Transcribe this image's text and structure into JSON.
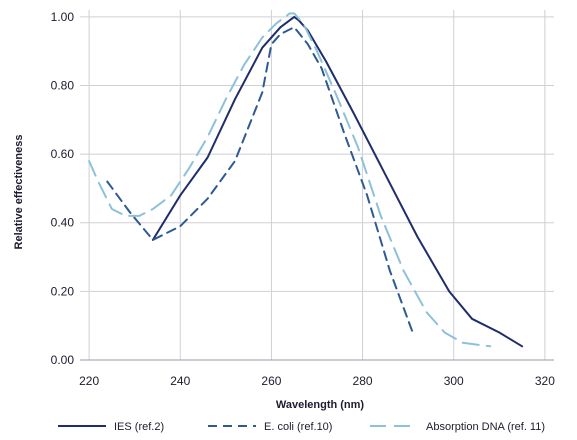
{
  "chart_data": {
    "type": "line",
    "xlabel": "Wavelength (nm)",
    "ylabel": "Relative effectiveness",
    "xlim": [
      218,
      322
    ],
    "ylim": [
      0,
      1.02
    ],
    "xticks": [
      220,
      240,
      260,
      280,
      300,
      320
    ],
    "yticks": [
      0.0,
      0.2,
      0.4,
      0.6,
      0.8,
      1.0
    ],
    "xtick_labels": [
      "220",
      "240",
      "260",
      "280",
      "300",
      "320"
    ],
    "ytick_labels": [
      "0.00",
      "0.20",
      "0.40",
      "0.60",
      "0.80",
      "1.00"
    ],
    "grid": true,
    "legend_position": "bottom",
    "series": [
      {
        "name": "IES (ref.2)",
        "color": "#1f2d6b",
        "style": "solid",
        "x": [
          234,
          240,
          246,
          252,
          258,
          262,
          265,
          266,
          268,
          272,
          278,
          285,
          292,
          299,
          304,
          310,
          315
        ],
        "y": [
          0.35,
          0.48,
          0.59,
          0.76,
          0.91,
          0.97,
          1.0,
          0.99,
          0.96,
          0.87,
          0.72,
          0.54,
          0.36,
          0.2,
          0.12,
          0.08,
          0.04
        ]
      },
      {
        "name": "E. coli (ref.10)",
        "color": "#2e5a94",
        "style": "dashed",
        "x": [
          224,
          229,
          234,
          240,
          246,
          252,
          258,
          260,
          262,
          265,
          268,
          271,
          276,
          281,
          286,
          291
        ],
        "y": [
          0.52,
          0.43,
          0.35,
          0.39,
          0.47,
          0.58,
          0.78,
          0.92,
          0.95,
          0.97,
          0.92,
          0.85,
          0.66,
          0.48,
          0.26,
          0.08
        ]
      },
      {
        "name": "Absorption DNA (ref. 11)",
        "color": "#8cc1d8",
        "style": "longdash",
        "x": [
          220,
          222,
          225,
          228,
          231,
          234,
          238,
          242,
          246,
          250,
          254,
          258,
          261,
          264,
          265,
          267,
          270,
          274,
          279,
          284,
          289,
          294,
          298,
          302,
          308
        ],
        "y": [
          0.58,
          0.52,
          0.44,
          0.42,
          0.42,
          0.44,
          0.48,
          0.56,
          0.65,
          0.76,
          0.86,
          0.94,
          0.98,
          1.01,
          1.01,
          0.98,
          0.9,
          0.78,
          0.62,
          0.42,
          0.26,
          0.14,
          0.08,
          0.05,
          0.04
        ]
      }
    ]
  }
}
